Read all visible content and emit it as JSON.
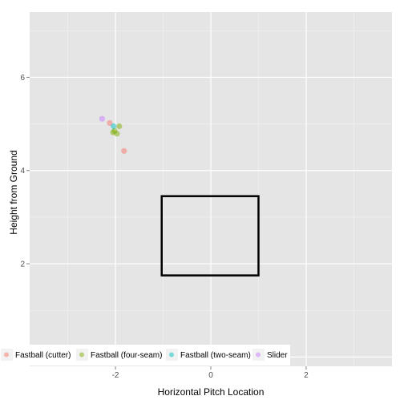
{
  "chart_data": {
    "type": "scatter",
    "title": "",
    "xlabel": "Horizontal Pitch Location",
    "ylabel": "Height from Ground",
    "xlim": [
      -3.8,
      3.8
    ],
    "ylim": [
      -0.2,
      7.4
    ],
    "xticks": [
      -2,
      0,
      2
    ],
    "xtick_labels": [
      "-2",
      "0",
      "2"
    ],
    "yticks": [
      2,
      4,
      6
    ],
    "ytick_labels": [
      "2",
      "4",
      "6"
    ],
    "grid": true,
    "legend_position": "bottom-left",
    "strike_zone": {
      "x": [
        -1.03,
        1.0
      ],
      "y": [
        1.75,
        3.45
      ]
    },
    "series": [
      {
        "name": "Fastball (cutter)",
        "color": "#F8766D",
        "points": [
          {
            "x": -1.82,
            "y": 4.42
          },
          {
            "x": -2.12,
            "y": 5.02
          }
        ]
      },
      {
        "name": "Fastball (four-seam)",
        "color": "#7CAE00",
        "points": [
          {
            "x": -2.05,
            "y": 4.82
          },
          {
            "x": -1.97,
            "y": 4.79
          },
          {
            "x": -1.92,
            "y": 4.95
          },
          {
            "x": -2.02,
            "y": 4.85
          }
        ]
      },
      {
        "name": "Fastball (two-seam)",
        "color": "#00BFC4",
        "points": [
          {
            "x": -2.04,
            "y": 4.95
          }
        ]
      },
      {
        "name": "Slider",
        "color": "#C77CFF",
        "points": [
          {
            "x": -2.28,
            "y": 5.11
          }
        ]
      }
    ]
  }
}
